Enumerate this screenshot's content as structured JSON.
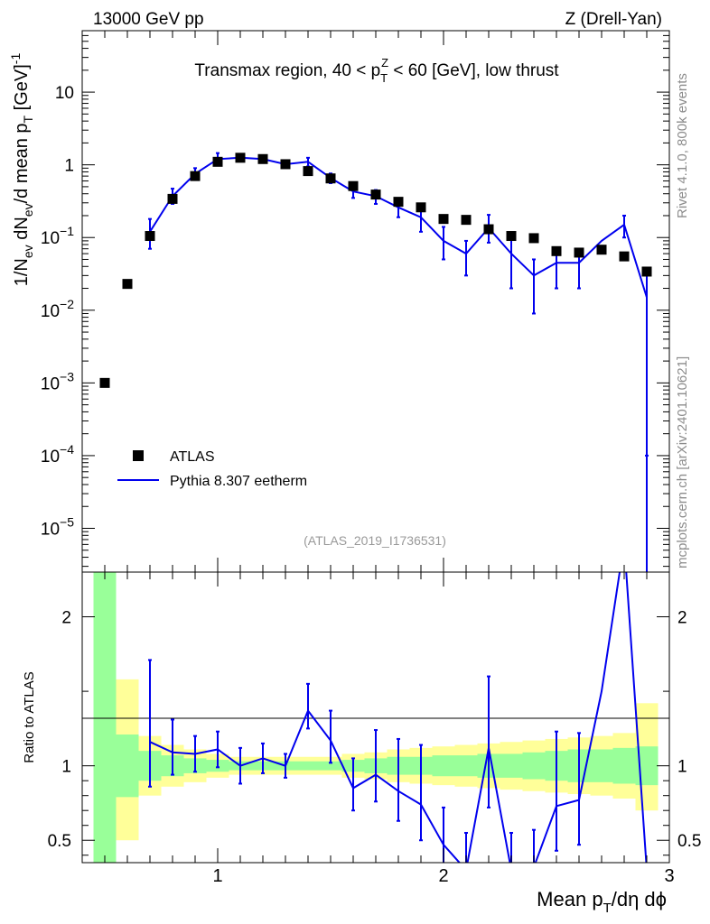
{
  "header": {
    "left": "13000 GeV pp",
    "right": "Z (Drell-Yan)"
  },
  "sidebar": {
    "rivet": "Rivet 4.1.0,  800k events",
    "mcplots": "mcplots.cern.ch [arXiv:2401.10621]"
  },
  "colors": {
    "data": "#000000",
    "mc": "#0000ee",
    "band_inner": "#99ff99",
    "band_outer": "#ffff99"
  },
  "chart_data": [
    {
      "type": "scatter",
      "title": "Transmax region, 40 < p_T^Z < 60 [GeV], low thrust",
      "title_parts": {
        "pre": "Transmax region, 40 < p",
        "sub": "T",
        "sup": "Z",
        "post": " < 60 [GeV], low thrust"
      },
      "ylabel": "1/N_ev dN_ev/d mean p_T [GeV]^-1",
      "yscale": "log",
      "ylim": [
        2.5e-06,
        70
      ],
      "xlim": [
        0.4,
        3.0
      ],
      "y_ticks": [
        {
          "v": 10,
          "base": "10",
          "exp": ""
        },
        {
          "v": 1,
          "base": "1",
          "exp": ""
        },
        {
          "v": 0.1,
          "base": "10",
          "exp": "−1"
        },
        {
          "v": 0.01,
          "base": "10",
          "exp": "−2"
        },
        {
          "v": 0.001,
          "base": "10",
          "exp": "−3"
        },
        {
          "v": 0.0001,
          "base": "10",
          "exp": "−4"
        },
        {
          "v": 1e-05,
          "base": "10",
          "exp": "−5"
        }
      ],
      "watermark": "(ATLAS_2019_I1736531)",
      "legend": {
        "position": "bottom-left",
        "data_label": "ATLAS",
        "mc_label": "Pythia 8.307 eetherm"
      },
      "series": [
        {
          "name": "ATLAS",
          "x": [
            0.5,
            0.6,
            0.7,
            0.8,
            0.9,
            1.0,
            1.1,
            1.2,
            1.3,
            1.4,
            1.5,
            1.6,
            1.7,
            1.8,
            1.9,
            2.0,
            2.1,
            2.2,
            2.3,
            2.4,
            2.5,
            2.6,
            2.7,
            2.8,
            2.9
          ],
          "y": [
            0.001,
            0.023,
            0.105,
            0.34,
            0.7,
            1.1,
            1.25,
            1.2,
            1.02,
            0.82,
            0.65,
            0.51,
            0.39,
            0.31,
            0.26,
            0.18,
            0.175,
            0.13,
            0.105,
            0.098,
            0.065,
            0.062,
            0.068,
            0.055,
            0.034
          ]
        },
        {
          "name": "Pythia 8.307 eetherm",
          "x": [
            0.7,
            0.8,
            0.9,
            1.0,
            1.1,
            1.2,
            1.3,
            1.4,
            1.5,
            1.6,
            1.7,
            1.8,
            1.9,
            2.0,
            2.1,
            2.2,
            2.3,
            2.4,
            2.5,
            2.6,
            2.7,
            2.8,
            2.9
          ],
          "y": [
            0.12,
            0.37,
            0.75,
            1.2,
            1.25,
            1.2,
            1.02,
            1.1,
            0.66,
            0.43,
            0.37,
            0.26,
            0.19,
            0.09,
            0.06,
            0.135,
            0.06,
            0.03,
            0.045,
            0.045,
            0.09,
            0.15,
            0.015
          ],
          "err_lo": [
            0.05,
            0.08,
            0.1,
            0.15,
            0.1,
            0.1,
            0.08,
            0.15,
            0.1,
            0.08,
            0.08,
            0.07,
            0.07,
            0.04,
            0.03,
            0.05,
            0.04,
            0.021,
            0.025,
            0.025,
            0.0,
            0.05,
            0.0149
          ],
          "err_hi": [
            0.06,
            0.1,
            0.15,
            0.25,
            0.1,
            0.1,
            0.08,
            0.15,
            0.1,
            0.08,
            0.08,
            0.07,
            0.08,
            0.05,
            0.03,
            0.07,
            0.05,
            0.02,
            0.025,
            0.02,
            0.0,
            0.05,
            0.02
          ]
        }
      ]
    },
    {
      "type": "line",
      "ylabel": "Ratio to ATLAS",
      "xlabel": "Mean p_T/dη dϕ",
      "xlabel_parts": {
        "pre": "Mean p",
        "sub": "T",
        "post": "/dη dϕ"
      },
      "xlim": [
        0.4,
        3.0
      ],
      "ylim": [
        0.35,
        2.3
      ],
      "x_ticks": [
        {
          "v": 1,
          "label": "1"
        },
        {
          "v": 2,
          "label": "2"
        },
        {
          "v": 3,
          "label": "3"
        }
      ],
      "y_ticks": [
        {
          "v": 2,
          "label": "2"
        },
        {
          "v": 1,
          "label": "1"
        },
        {
          "v": 0.5,
          "label": "0.5"
        }
      ],
      "bands": {
        "edges": [
          0.45,
          0.55,
          0.65,
          0.75,
          0.85,
          0.95,
          1.05,
          1.15,
          1.25,
          1.35,
          1.45,
          1.55,
          1.65,
          1.75,
          1.85,
          1.95,
          2.05,
          2.15,
          2.25,
          2.35,
          2.45,
          2.55,
          2.65,
          2.75,
          2.85,
          2.95
        ],
        "inner_lo": [
          0.35,
          0.79,
          0.9,
          0.93,
          0.95,
          0.96,
          0.97,
          0.97,
          0.97,
          0.97,
          0.97,
          0.96,
          0.95,
          0.94,
          0.94,
          0.93,
          0.93,
          0.92,
          0.92,
          0.91,
          0.9,
          0.89,
          0.89,
          0.88,
          0.87
        ],
        "inner_hi": [
          2.3,
          1.21,
          1.1,
          1.07,
          1.05,
          1.04,
          1.03,
          1.03,
          1.03,
          1.03,
          1.03,
          1.04,
          1.05,
          1.06,
          1.06,
          1.07,
          1.07,
          1.08,
          1.08,
          1.09,
          1.1,
          1.11,
          1.11,
          1.12,
          1.13
        ],
        "outer_lo": [
          0.5,
          0.5,
          0.8,
          0.86,
          0.89,
          0.92,
          0.94,
          0.94,
          0.94,
          0.94,
          0.94,
          0.92,
          0.91,
          0.89,
          0.88,
          0.87,
          0.86,
          0.85,
          0.84,
          0.83,
          0.82,
          0.81,
          0.8,
          0.78,
          0.7
        ],
        "outer_hi": [
          2.3,
          1.58,
          1.2,
          1.14,
          1.11,
          1.08,
          1.06,
          1.06,
          1.06,
          1.06,
          1.06,
          1.08,
          1.09,
          1.11,
          1.12,
          1.13,
          1.14,
          1.15,
          1.16,
          1.17,
          1.18,
          1.19,
          1.2,
          1.22,
          1.42
        ]
      },
      "series": [
        {
          "name": "Pythia 8.307 eetherm / ATLAS",
          "x": [
            0.7,
            0.8,
            0.9,
            1.0,
            1.1,
            1.2,
            1.3,
            1.4,
            1.5,
            1.6,
            1.7,
            1.8,
            1.9,
            2.0,
            2.1,
            2.2,
            2.3,
            2.4,
            2.5,
            2.6,
            2.7,
            2.8,
            2.9
          ],
          "y": [
            1.16,
            1.09,
            1.08,
            1.11,
            1.0,
            1.05,
            1.0,
            1.37,
            1.17,
            0.85,
            0.94,
            0.83,
            0.74,
            0.47,
            0.3,
            1.12,
            0.3,
            0.32,
            0.73,
            0.77,
            1.5,
            2.5,
            0.3
          ],
          "err_lo": [
            0.3,
            0.15,
            0.12,
            0.12,
            0.12,
            0.1,
            0.08,
            0.12,
            0.15,
            0.15,
            0.18,
            0.2,
            0.24,
            0.2,
            0.2,
            0.4,
            0.2,
            0.2,
            0.3,
            0.3,
            0.0,
            0.0,
            0.0
          ],
          "err_hi": [
            0.55,
            0.22,
            0.12,
            0.12,
            0.12,
            0.1,
            0.08,
            0.18,
            0.2,
            0.2,
            0.3,
            0.35,
            0.4,
            0.25,
            0.25,
            0.48,
            0.25,
            0.25,
            0.5,
            0.45,
            0.0,
            0.0,
            0.0
          ]
        }
      ]
    }
  ]
}
